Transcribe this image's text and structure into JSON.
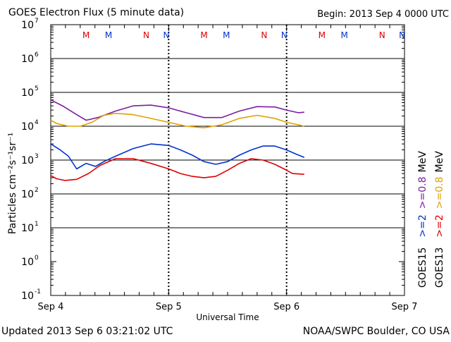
{
  "header": {
    "title": "GOES Electron Flux (5 minute data)",
    "begin": "Begin: 2013 Sep 4 0000 UTC"
  },
  "footer": {
    "updated": "Updated 2013 Sep  6 03:21:02 UTC",
    "credit": "NOAA/SWPC Boulder, CO USA"
  },
  "chart_data": {
    "type": "line",
    "ylabel": "Particles cm⁻²s⁻¹sr⁻¹",
    "xlabel": "Universal Time",
    "yscale": "log",
    "ylim": [
      0.1,
      10000000
    ],
    "y_tick_exponents": [
      7,
      6,
      5,
      4,
      3,
      2,
      1,
      0,
      -1
    ],
    "xlim_days": [
      0,
      3
    ],
    "x_ticks": [
      "Sep 4",
      "Sep 5",
      "Sep 6",
      "Sep 7"
    ],
    "grid_lines": [
      10,
      100,
      1000,
      10000,
      100000,
      1000000
    ],
    "threshold": {
      "value": 1000,
      "style": "dashed"
    },
    "series": [
      {
        "name": ">=0.8 MeV",
        "satellite": "GOES15",
        "color": "#7b1fa2",
        "x": [
          0.0,
          0.1,
          0.22,
          0.3,
          0.4,
          0.55,
          0.7,
          0.85,
          1.0,
          1.15,
          1.3,
          1.45,
          1.6,
          1.75,
          1.9,
          2.0,
          2.1,
          2.15
        ],
        "y": [
          60000,
          40000,
          22000,
          15000,
          18000,
          28000,
          40000,
          42000,
          35000,
          25000,
          18000,
          18000,
          28000,
          38000,
          37000,
          30000,
          25000,
          26000
        ]
      },
      {
        "name": ">=0.8 MeV",
        "satellite": "GOES13",
        "color": "#e0a000",
        "x": [
          0.0,
          0.05,
          0.15,
          0.25,
          0.35,
          0.45,
          0.55,
          0.7,
          0.85,
          1.0,
          1.15,
          1.3,
          1.45,
          1.6,
          1.75,
          1.9,
          2.0,
          2.1,
          2.15
        ],
        "y": [
          15000,
          12000,
          10000,
          10000,
          13000,
          21000,
          24000,
          22000,
          17000,
          13000,
          10000,
          9000,
          11000,
          17000,
          21000,
          17000,
          13000,
          11000,
          10000
        ]
      },
      {
        "name": ">=2 MeV",
        "satellite": "GOES15",
        "color": "#0033cc",
        "x": [
          0.0,
          0.08,
          0.15,
          0.22,
          0.3,
          0.38,
          0.45,
          0.55,
          0.7,
          0.85,
          1.0,
          1.1,
          1.2,
          1.3,
          1.4,
          1.5,
          1.6,
          1.7,
          1.8,
          1.9,
          2.0,
          2.08,
          2.15
        ],
        "y": [
          3000,
          2000,
          1300,
          550,
          800,
          650,
          900,
          1300,
          2200,
          3000,
          2700,
          2000,
          1400,
          900,
          750,
          900,
          1400,
          2000,
          2600,
          2600,
          2000,
          1500,
          1200
        ]
      },
      {
        "name": ">=2 MeV",
        "satellite": "GOES13",
        "color": "#dd0000",
        "x": [
          0.0,
          0.05,
          0.12,
          0.22,
          0.32,
          0.42,
          0.55,
          0.7,
          0.85,
          1.0,
          1.1,
          1.2,
          1.3,
          1.4,
          1.5,
          1.6,
          1.7,
          1.8,
          1.9,
          2.0,
          2.05,
          2.15
        ],
        "y": [
          350,
          280,
          250,
          270,
          400,
          700,
          1100,
          1100,
          800,
          550,
          400,
          330,
          300,
          330,
          500,
          800,
          1100,
          1000,
          750,
          500,
          400,
          380
        ]
      }
    ],
    "markers": [
      {
        "label": "M",
        "color": "#dd0000",
        "day": 0.3
      },
      {
        "label": "M",
        "color": "#0033cc",
        "day": 0.49
      },
      {
        "label": "N",
        "color": "#dd0000",
        "day": 0.81
      },
      {
        "label": "N",
        "color": "#0033cc",
        "day": 0.98
      },
      {
        "label": "M",
        "color": "#dd0000",
        "day": 1.3
      },
      {
        "label": "M",
        "color": "#0033cc",
        "day": 1.49
      },
      {
        "label": "N",
        "color": "#dd0000",
        "day": 1.81
      },
      {
        "label": "N",
        "color": "#0033cc",
        "day": 1.98
      },
      {
        "label": "M",
        "color": "#dd0000",
        "day": 2.3
      },
      {
        "label": "M",
        "color": "#0033cc",
        "day": 2.49
      },
      {
        "label": "N",
        "color": "#dd0000",
        "day": 2.81
      },
      {
        "label": "N",
        "color": "#0033cc",
        "day": 2.98
      }
    ],
    "legend": {
      "placement": "right",
      "lines": [
        {
          "satellite": "GOES15",
          "energies": [
            {
              "text": ">=2",
              "color": "#0033cc"
            },
            {
              "text": ">=0.8",
              "color": "#7b1fa2"
            }
          ],
          "unit": "MeV"
        },
        {
          "satellite": "GOES13",
          "energies": [
            {
              "text": ">=2",
              "color": "#dd0000"
            },
            {
              "text": ">=0.8",
              "color": "#e0a000"
            }
          ],
          "unit": "MeV"
        }
      ]
    }
  }
}
